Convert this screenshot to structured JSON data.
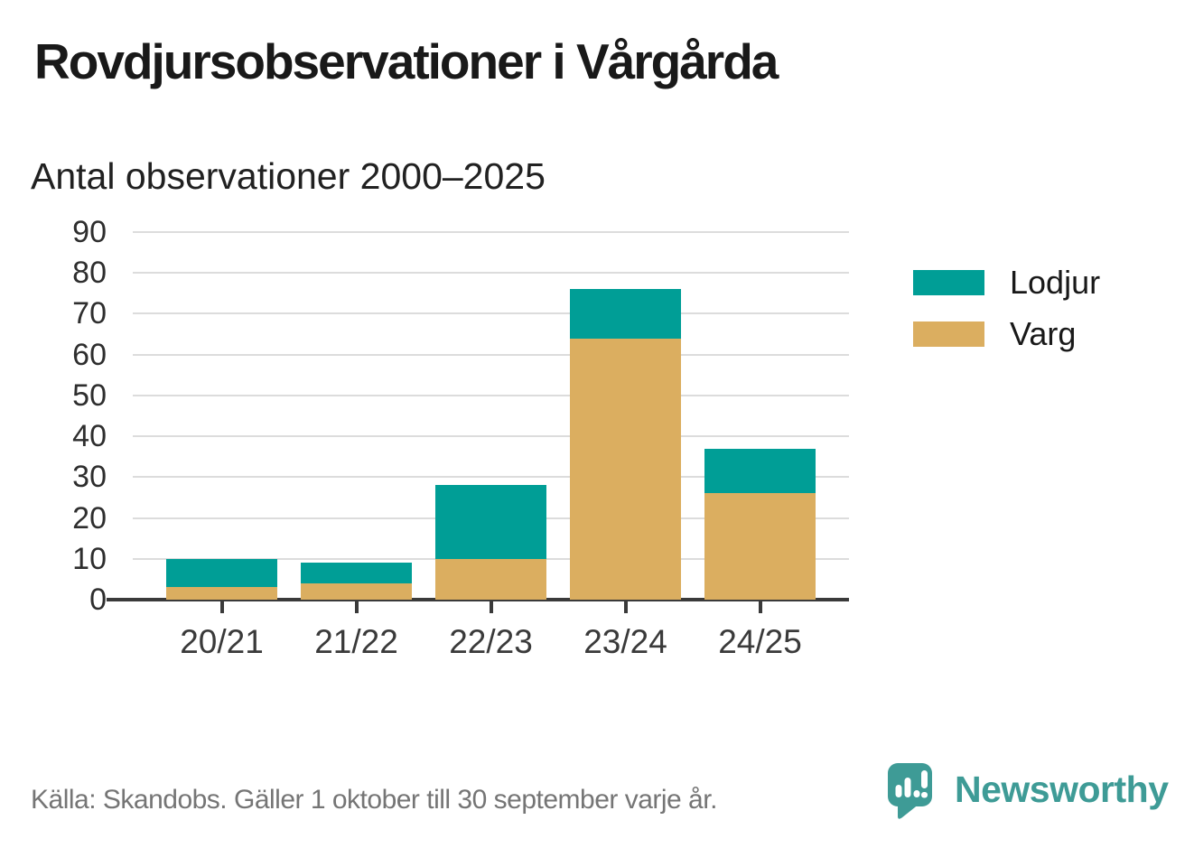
{
  "chart_data": {
    "type": "bar",
    "stacked": true,
    "title": "Rovdjursobservationer i Vårgårda",
    "subtitle": "Antal observationer 2000–2025",
    "categories": [
      "20/21",
      "21/22",
      "22/23",
      "23/24",
      "24/25"
    ],
    "series": [
      {
        "name": "Lodjur",
        "color": "#009e96",
        "values": [
          7,
          5,
          18,
          12,
          11
        ]
      },
      {
        "name": "Varg",
        "color": "#dbae60",
        "values": [
          3,
          4,
          10,
          64,
          26
        ]
      }
    ],
    "stack_order_bottom_to_top": [
      "Varg",
      "Lodjur"
    ],
    "totals": [
      10,
      9,
      28,
      76,
      37
    ],
    "xlabel": "",
    "ylabel": "",
    "ylim": [
      0,
      90
    ],
    "yticks": [
      0,
      10,
      20,
      30,
      40,
      50,
      60,
      70,
      80,
      90
    ],
    "grid": "horizontal",
    "legend_position": "right"
  },
  "footer": {
    "source": "Källa: Skandobs. Gäller 1 oktober till 30 september varje år.",
    "brand": "Newsworthy"
  },
  "colors": {
    "axis": "#3a3a3a",
    "gridline": "#dcdcdc",
    "tick_text": "#2e2e2e",
    "title_text": "#191919",
    "source_text": "#757575",
    "brand_teal": "#3e9b96",
    "background": "#ffffff"
  }
}
